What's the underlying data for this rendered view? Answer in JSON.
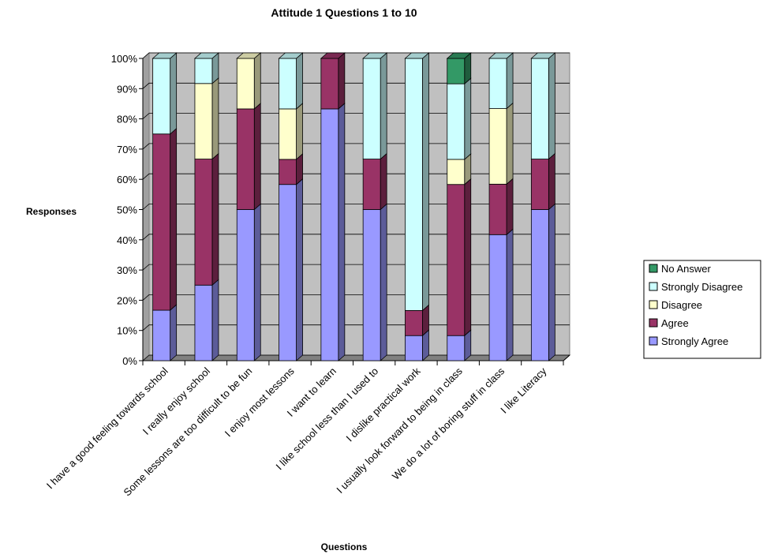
{
  "chart_data": {
    "type": "bar",
    "stacked": true,
    "three_d": true,
    "title": "Attitude 1 Questions 1 to 10",
    "xlabel": "Questions",
    "ylabel": "Responses",
    "ylim": [
      0,
      100
    ],
    "y_ticks": [
      "0%",
      "10%",
      "20%",
      "30%",
      "40%",
      "50%",
      "60%",
      "70%",
      "80%",
      "90%",
      "100%"
    ],
    "grid": true,
    "legend_position": "right",
    "categories": [
      "I have a good feeling towards school",
      "I really enjoy school",
      "Some lessons are too difficult to be fun",
      "I enjoy most lessons",
      "I want to learn",
      "I like school less than I used to",
      "I dislike practical work",
      "I usually look forward to being in class",
      "We do a lot of boring stuff in class",
      "I like Literacy"
    ],
    "series": [
      {
        "name": "Strongly Agree",
        "color": "#9999FF",
        "values": [
          16.7,
          25.0,
          50.0,
          58.3,
          83.3,
          50.0,
          8.3,
          8.3,
          41.7,
          50.0
        ]
      },
      {
        "name": "Agree",
        "color": "#993366",
        "values": [
          58.3,
          41.7,
          33.3,
          8.3,
          16.7,
          16.7,
          8.3,
          50.0,
          16.7,
          16.7
        ]
      },
      {
        "name": "Disagree",
        "color": "#FFFFCC",
        "values": [
          0,
          25.0,
          16.7,
          16.7,
          0,
          0,
          0,
          8.3,
          25.0,
          0
        ]
      },
      {
        "name": "Strongly Disagree",
        "color": "#CCFFFF",
        "values": [
          25.0,
          8.3,
          0,
          16.7,
          0,
          33.3,
          83.4,
          25.0,
          16.6,
          33.3
        ]
      },
      {
        "name": "No Answer",
        "color": "#339966",
        "values": [
          0,
          0,
          0,
          0,
          0,
          0,
          0,
          8.4,
          0,
          0
        ]
      }
    ],
    "legend_order": [
      "No Answer",
      "Strongly Disagree",
      "Disagree",
      "Agree",
      "Strongly Agree"
    ]
  }
}
